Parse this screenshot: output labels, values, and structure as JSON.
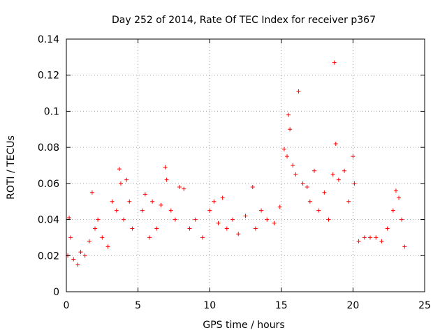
{
  "chart_data": {
    "type": "scatter",
    "title": "Day 252 of 2014, Rate Of TEC Index for receiver p367",
    "xlabel": "GPS time / hours",
    "ylabel": "ROTI / TECUs",
    "xlim": [
      0,
      25
    ],
    "ylim": [
      0,
      0.14
    ],
    "xticks": [
      0,
      5,
      10,
      15,
      20,
      25
    ],
    "xtick_labels": [
      "0",
      "5",
      "10",
      "15",
      "20",
      "25"
    ],
    "yticks": [
      0,
      0.02,
      0.04,
      0.06,
      0.08,
      0.1,
      0.12,
      0.14
    ],
    "ytick_labels": [
      "0",
      "0.02",
      "0.04",
      "0.06",
      "0.08",
      "0.1",
      "0.12",
      "0.14"
    ],
    "grid": true,
    "marker": "+",
    "color": "#ff0000",
    "data_gap_hours": [
      4.7,
      5.2
    ],
    "series": [
      {
        "name": "ROTI",
        "x": [
          0.1,
          0.2,
          0.3,
          0.5,
          0.8,
          1.0,
          1.3,
          1.6,
          1.8,
          2.0,
          2.2,
          2.5,
          2.9,
          3.2,
          3.5,
          3.7,
          3.8,
          4.0,
          4.2,
          4.4,
          4.6,
          5.3,
          5.5,
          5.8,
          6.0,
          6.3,
          6.6,
          6.9,
          7.0,
          7.3,
          7.6,
          7.9,
          8.2,
          8.6,
          9.0,
          9.5,
          10.0,
          10.3,
          10.6,
          10.9,
          11.2,
          11.6,
          12.0,
          12.5,
          13.0,
          13.2,
          13.6,
          14.0,
          14.5,
          14.9,
          15.2,
          15.4,
          15.5,
          15.6,
          15.8,
          16.0,
          16.2,
          16.5,
          16.8,
          17.0,
          17.3,
          17.6,
          18.0,
          18.3,
          18.6,
          18.7,
          18.8,
          19.0,
          19.4,
          19.7,
          20.0,
          20.1,
          20.4,
          20.8,
          21.2,
          21.6,
          22.0,
          22.4,
          22.8,
          23.0,
          23.2,
          23.4,
          23.6
        ],
        "y": [
          0.02,
          0.041,
          0.03,
          0.018,
          0.015,
          0.022,
          0.02,
          0.028,
          0.055,
          0.035,
          0.04,
          0.03,
          0.025,
          0.05,
          0.045,
          0.068,
          0.06,
          0.04,
          0.062,
          0.05,
          0.035,
          0.045,
          0.054,
          0.03,
          0.05,
          0.035,
          0.048,
          0.069,
          0.062,
          0.045,
          0.04,
          0.058,
          0.057,
          0.035,
          0.04,
          0.03,
          0.045,
          0.05,
          0.038,
          0.052,
          0.035,
          0.04,
          0.032,
          0.042,
          0.058,
          0.035,
          0.045,
          0.04,
          0.038,
          0.047,
          0.079,
          0.075,
          0.098,
          0.09,
          0.07,
          0.065,
          0.111,
          0.06,
          0.058,
          0.05,
          0.067,
          0.045,
          0.055,
          0.04,
          0.065,
          0.127,
          0.082,
          0.062,
          0.067,
          0.05,
          0.075,
          0.06,
          0.028,
          0.03,
          0.03,
          0.03,
          0.028,
          0.035,
          0.045,
          0.056,
          0.052,
          0.04,
          0.025
        ]
      }
    ]
  }
}
